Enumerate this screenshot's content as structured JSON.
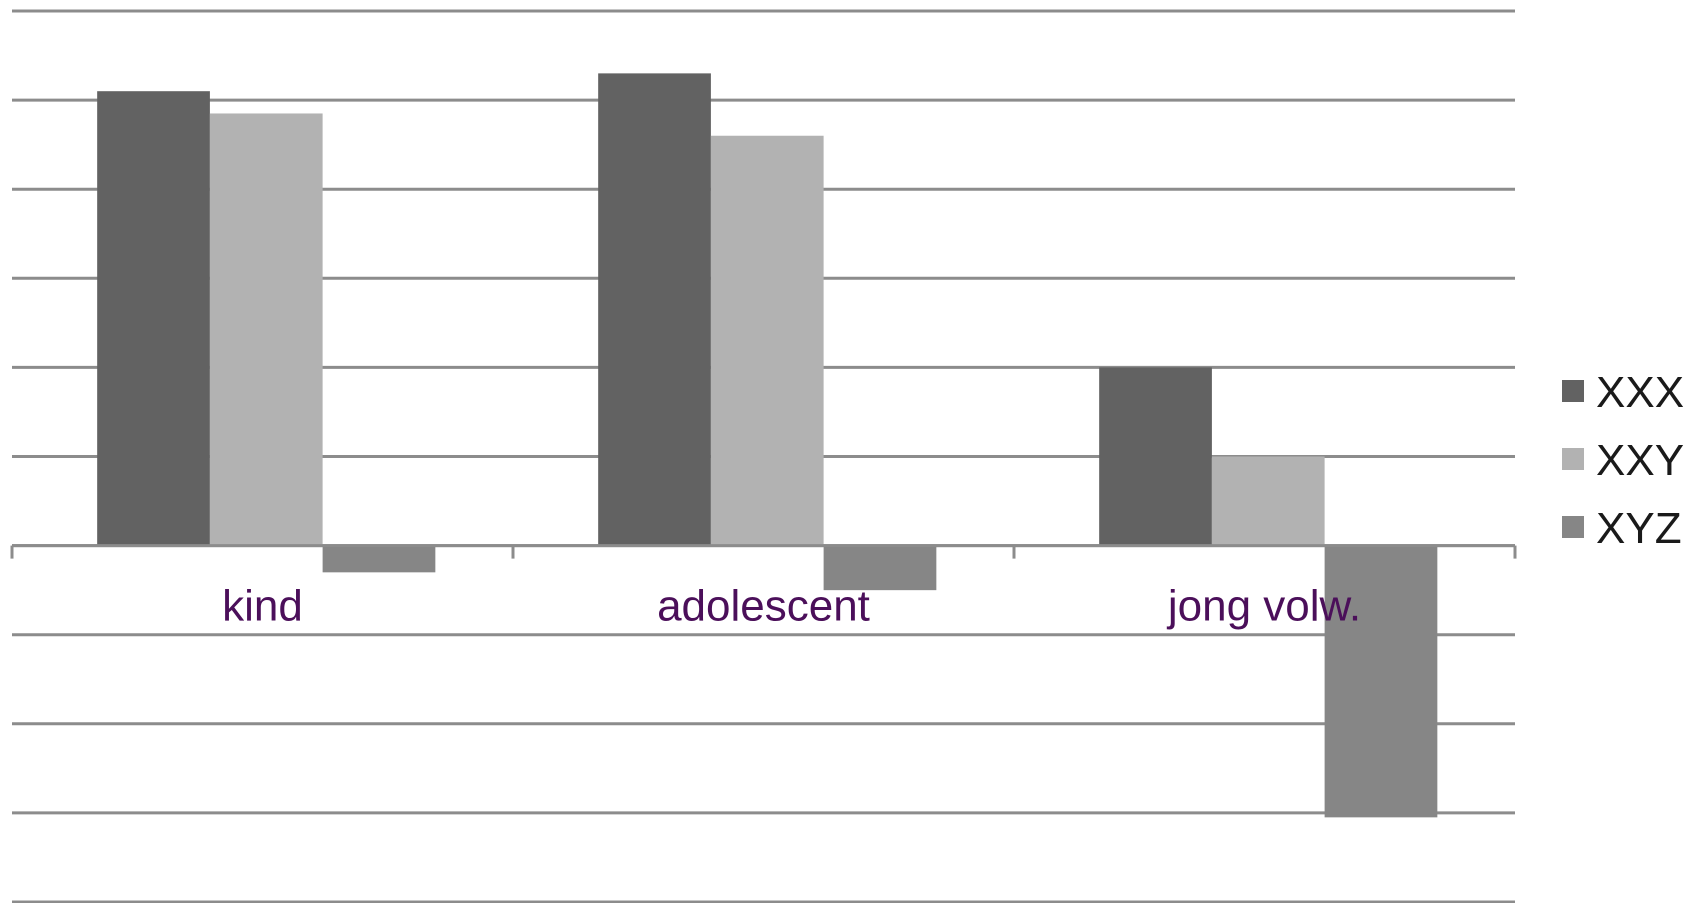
{
  "chart_data": {
    "type": "bar",
    "title": "",
    "xlabel": "",
    "ylabel": "",
    "categories": [
      "kind",
      "adolescent",
      "jong volw."
    ],
    "series": [
      {
        "name": "XXX",
        "color": "#626262",
        "values": [
          5.1,
          5.3,
          2.0
        ]
      },
      {
        "name": "XXY",
        "color": "#b2b2b2",
        "values": [
          4.85,
          4.6,
          1.0
        ]
      },
      {
        "name": "XYZ",
        "color": "#868686",
        "values": [
          -0.3,
          -0.5,
          -3.05
        ]
      }
    ],
    "ylim": [
      -4,
      6
    ],
    "grid": true,
    "tick_labels_visible": false,
    "legend_position": "right"
  }
}
